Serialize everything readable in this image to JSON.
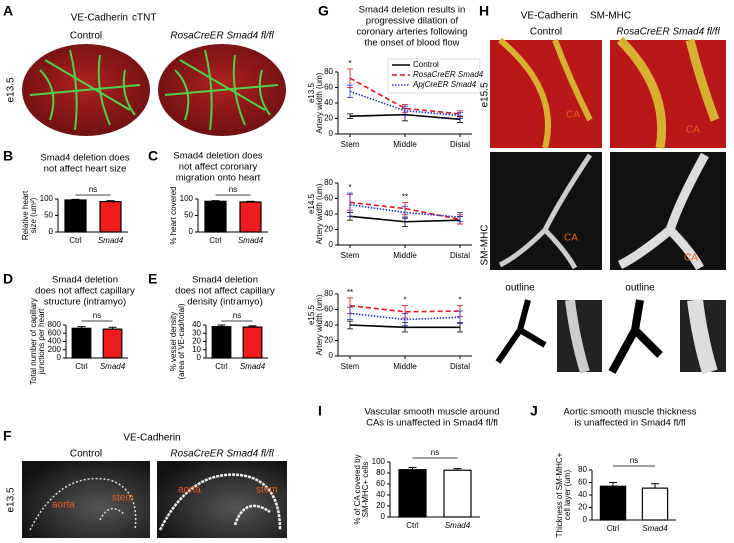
{
  "panels": {
    "A": {
      "label": "A",
      "legend": [
        {
          "text": "VE-Cadherin",
          "color": "#3cb043"
        },
        {
          "text": "cTNT",
          "color": "#d01c1c"
        }
      ],
      "columns": [
        "Control",
        "RosaCreER Smad4 fl/fl"
      ],
      "stage": "e13.5"
    },
    "B": {
      "type": "bar",
      "label": "B",
      "title": [
        "Smad4 deletion does",
        "not affect heart size"
      ],
      "ylabel": [
        "Relative heart",
        "size (um²)"
      ],
      "categories": [
        "Ctrl",
        "Smad4"
      ],
      "values": [
        97,
        92
      ],
      "errors": [
        2,
        3
      ],
      "colors": [
        "#000000",
        "#ee1c1c"
      ],
      "ylim": [
        0,
        100
      ],
      "yticks": [
        0,
        50,
        100
      ],
      "annotation": "ns"
    },
    "C": {
      "type": "bar",
      "label": "C",
      "title": [
        "Smad4 deletion does",
        "not affect coronary",
        "migration onto heart"
      ],
      "ylabel": [
        "% heart covered"
      ],
      "categories": [
        "Ctrl",
        "Smad4"
      ],
      "values": [
        93,
        91
      ],
      "errors": [
        2,
        2
      ],
      "colors": [
        "#000000",
        "#ee1c1c"
      ],
      "ylim": [
        0,
        100
      ],
      "yticks": [
        0,
        50,
        100
      ],
      "annotation": "ns"
    },
    "D": {
      "type": "bar",
      "label": "D",
      "title": [
        "Smad4 deletion",
        "does not affect capillary",
        "structure (intramyo)"
      ],
      "ylabel": [
        "Total number of capillary",
        "junctions per heart"
      ],
      "categories": [
        "Ctrl",
        "Smad4"
      ],
      "values": [
        720,
        700
      ],
      "errors": [
        40,
        45
      ],
      "colors": [
        "#000000",
        "#ee1c1c"
      ],
      "ylim": [
        0,
        800
      ],
      "yticks": [
        0,
        200,
        400,
        600,
        800
      ],
      "annotation": "ns"
    },
    "E": {
      "type": "bar",
      "label": "E",
      "title": [
        "Smad4 deletion",
        "does not affect capillary",
        "density (intramyo)"
      ],
      "ylabel": [
        "% vessel density",
        "(area of VE-cad/total)"
      ],
      "categories": [
        "Ctrl",
        "Smad4"
      ],
      "values": [
        38,
        37.5
      ],
      "errors": [
        2,
        1.5
      ],
      "colors": [
        "#000000",
        "#ee1c1c"
      ],
      "ylim": [
        0,
        40
      ],
      "yticks": [
        0,
        10,
        20,
        30,
        40
      ],
      "annotation": "ns"
    },
    "F": {
      "label": "F",
      "title": "VE-Cadherin",
      "columns": [
        "Control",
        "RosaCreER Smad4 fl/fl"
      ],
      "stage": "e13.5",
      "annotations": [
        "aorta",
        "stem",
        "aorta",
        "stem"
      ]
    },
    "G": {
      "label": "G",
      "title": [
        "Smad4 deletion results in",
        "progressive dilation of",
        "coronary arteries following",
        "the onset of blood flow"
      ],
      "series": [
        {
          "name": "Control",
          "color": "#000000",
          "dash": "solid"
        },
        {
          "name": "RosaCreER Smad4",
          "color": "#e8161b",
          "dash": "dashed"
        },
        {
          "name": "ApjCreER Smad4",
          "color": "#2233cc",
          "dash": "dotted"
        }
      ],
      "categories": [
        "Stem",
        "Middle",
        "Distal"
      ],
      "ylabel": "Artery width (um)",
      "charts": [
        {
          "type": "line",
          "stage": "e13.5",
          "ylim": [
            0,
            80
          ],
          "yticks": [
            0,
            20,
            40,
            60,
            80
          ],
          "values": [
            [
              23,
              25,
              19
            ],
            [
              72,
              33,
              26
            ],
            [
              55,
              30,
              24
            ]
          ],
          "errors": [
            [
              3,
              8,
              4
            ],
            [
              12,
              5,
              4
            ],
            [
              8,
              6,
              4
            ]
          ],
          "stars": [
            "*",
            null,
            null
          ]
        },
        {
          "type": "line",
          "stage": "e14.5",
          "ylim": [
            0,
            80
          ],
          "yticks": [
            0,
            20,
            40,
            60,
            80
          ],
          "values": [
            [
              37,
              30,
              32
            ],
            [
              55,
              47,
              33
            ],
            [
              52,
              42,
              36
            ]
          ],
          "errors": [
            [
              5,
              6,
              5
            ],
            [
              10,
              8,
              6
            ],
            [
              15,
              8,
              6
            ]
          ],
          "stars": [
            "*",
            "**",
            null
          ]
        },
        {
          "type": "line",
          "stage": "e15.5",
          "ylim": [
            0,
            80
          ],
          "yticks": [
            0,
            20,
            40,
            60,
            80
          ],
          "values": [
            [
              40,
              37,
              37
            ],
            [
              65,
              57,
              58
            ],
            [
              55,
              47,
              50
            ]
          ],
          "errors": [
            [
              5,
              6,
              6
            ],
            [
              10,
              8,
              7
            ],
            [
              8,
              8,
              8
            ]
          ],
          "stars": [
            "**",
            "*",
            "*"
          ]
        }
      ]
    },
    "H": {
      "label": "H",
      "legend": [
        {
          "text": "VE-Cadherin",
          "color": "#d01c1c"
        },
        {
          "text": "SM-MHC",
          "color": "#3cb043"
        }
      ],
      "columns": [
        "Control",
        "RosaCreER Smad4 fl/fl"
      ],
      "stage": "e15.5",
      "row_label": "SM-MHC",
      "outline": [
        "outline",
        "outline"
      ],
      "annotations": [
        "CA",
        "CA",
        "CA",
        "CA"
      ]
    },
    "I": {
      "type": "bar",
      "label": "I",
      "title": [
        "Vascular smooth muscle around",
        "CAs is unaffected in Smad4 fl/fl"
      ],
      "ylabel": [
        "% of CA covered by",
        "SM-MHC+ cells"
      ],
      "categories": [
        "Ctrl",
        "Smad4"
      ],
      "values": [
        86,
        85
      ],
      "errors": [
        4,
        3
      ],
      "colors": [
        "#000000",
        "#ffffff"
      ],
      "ylim": [
        0,
        100
      ],
      "yticks": [
        0,
        20,
        40,
        60,
        80,
        100
      ],
      "annotation": "ns"
    },
    "J": {
      "type": "bar",
      "label": "J",
      "title": [
        "Aortic smooth muscle thickness",
        "is unaffected in Smad4 fl/fl"
      ],
      "ylabel": [
        "Thickness of SM-MHC+",
        "cell layer (um)"
      ],
      "categories": [
        "Ctrl",
        "Smad4"
      ],
      "values": [
        54,
        51
      ],
      "errors": [
        6,
        7
      ],
      "colors": [
        "#000000",
        "#ffffff"
      ],
      "ylim": [
        0,
        80
      ],
      "yticks": [
        0,
        20,
        40,
        60,
        80
      ],
      "annotation": "ns"
    }
  }
}
